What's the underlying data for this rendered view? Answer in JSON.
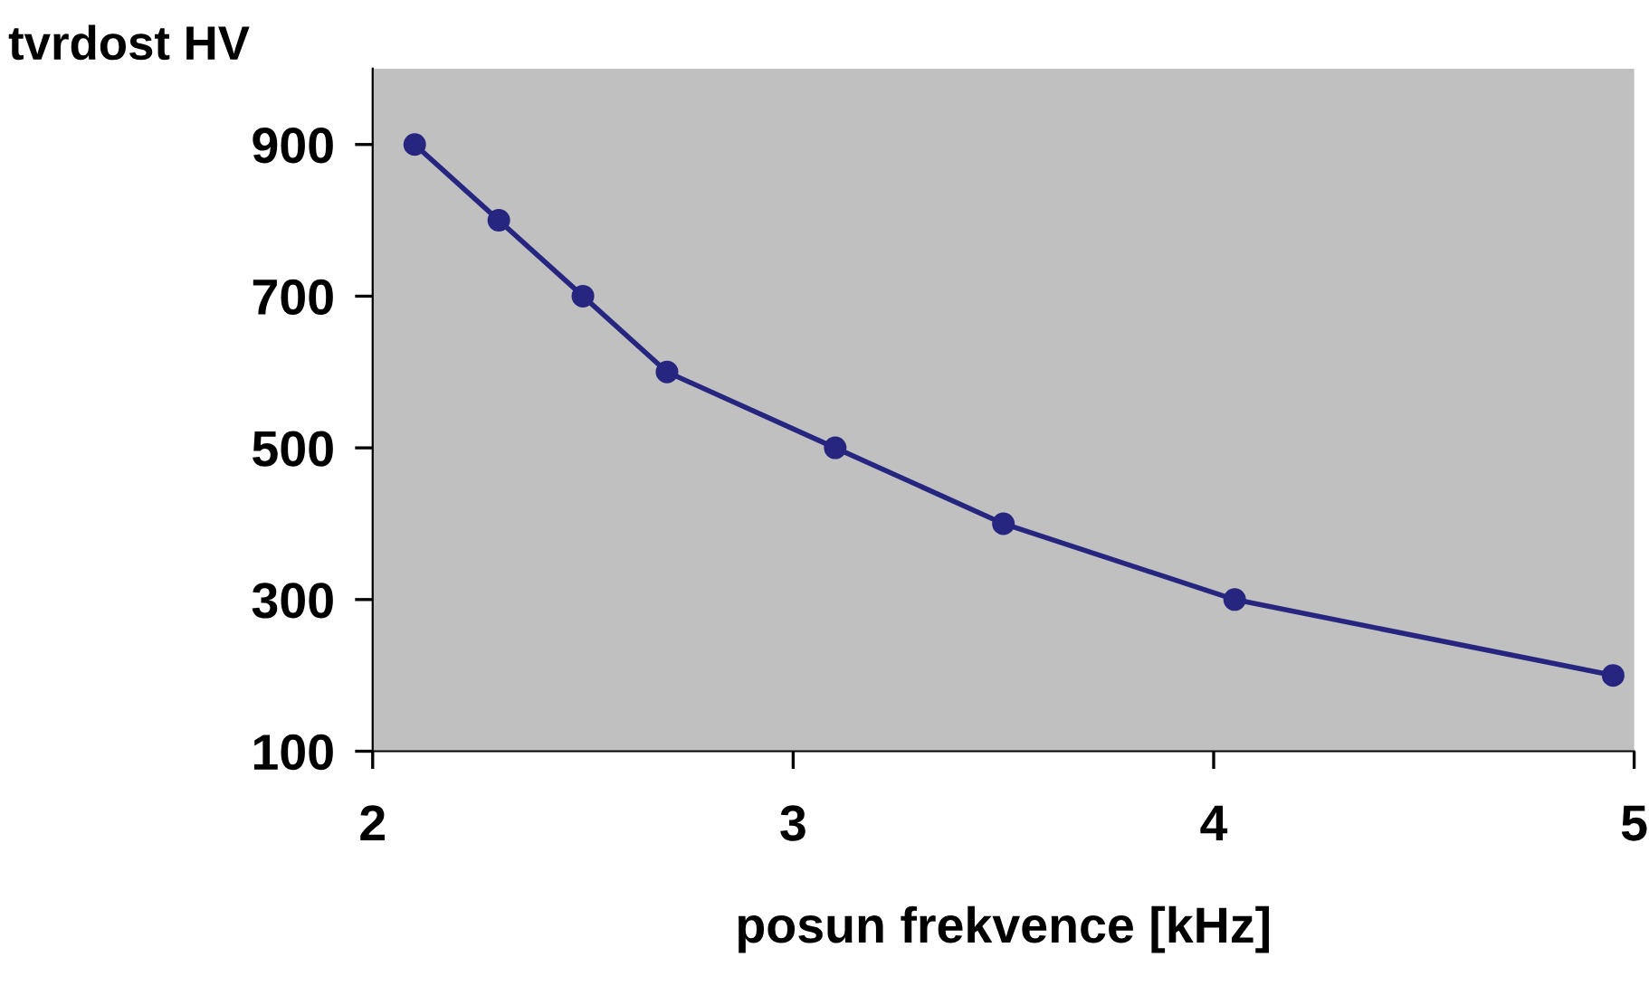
{
  "chart_data": {
    "type": "line",
    "xlabel": "posun frekvence [kHz]",
    "ylabel": "tvrdost HV",
    "x": [
      2.1,
      2.3,
      2.5,
      2.7,
      3.1,
      3.5,
      4.05,
      4.95
    ],
    "series": [
      {
        "color": "#262680",
        "values": [
          900,
          800,
          700,
          600,
          500,
          400,
          300,
          200
        ]
      }
    ],
    "xlim": [
      2,
      5
    ],
    "ylim": [
      100,
      1000
    ],
    "xticks": [
      2,
      3,
      4,
      5
    ],
    "yticks": [
      100,
      300,
      500,
      700,
      900
    ],
    "marker": "circle",
    "line_style": "solid",
    "grid": false,
    "legend": false
  }
}
